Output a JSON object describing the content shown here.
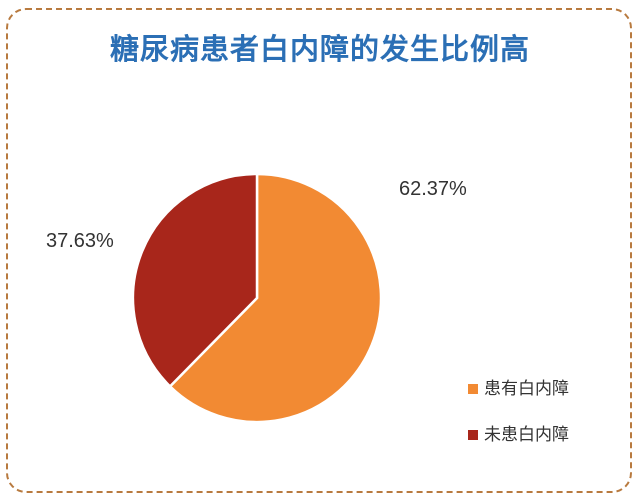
{
  "chart_data": {
    "type": "pie",
    "title": "糖尿病患者白内障的发生比例高",
    "categories": [
      "患有白内障",
      "未患白内障"
    ],
    "values": [
      62.37,
      37.63
    ],
    "value_labels": [
      "62.37%",
      "37.63%"
    ],
    "colors": [
      "#f28a33",
      "#a8261b"
    ],
    "legend_position": "bottom-right"
  }
}
